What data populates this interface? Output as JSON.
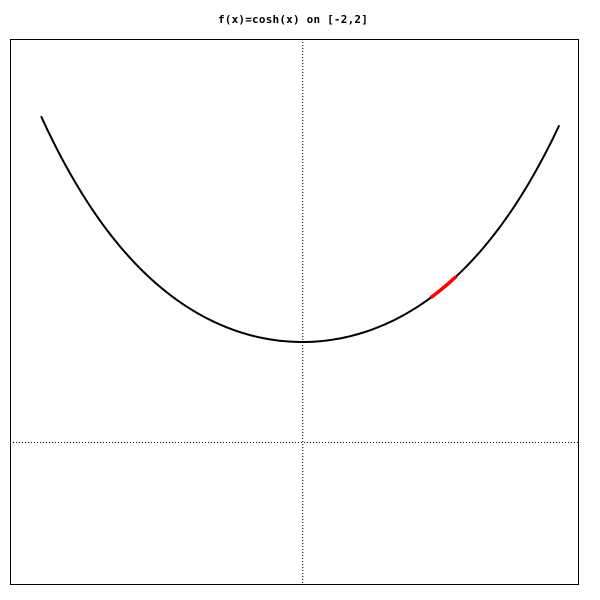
{
  "chart_data": {
    "type": "line",
    "title": "f(x)=cosh(x) on [-2,2]",
    "xlabel": "",
    "ylabel": "",
    "xlim": [
      -2.07,
      1.96
    ],
    "ylim": [
      -1.43,
      4.03
    ],
    "grid": false,
    "axes_lines": "dotted lines at x=0 and y=0",
    "series": [
      {
        "function": "cosh",
        "x_range": [
          -1.85,
          1.82
        ],
        "samples": 161,
        "color": "#000000"
      },
      {
        "function": "cosh",
        "x_range": [
          0.91,
          1.09
        ],
        "samples": 12,
        "color": "#ff0000",
        "highlight": true
      }
    ]
  }
}
